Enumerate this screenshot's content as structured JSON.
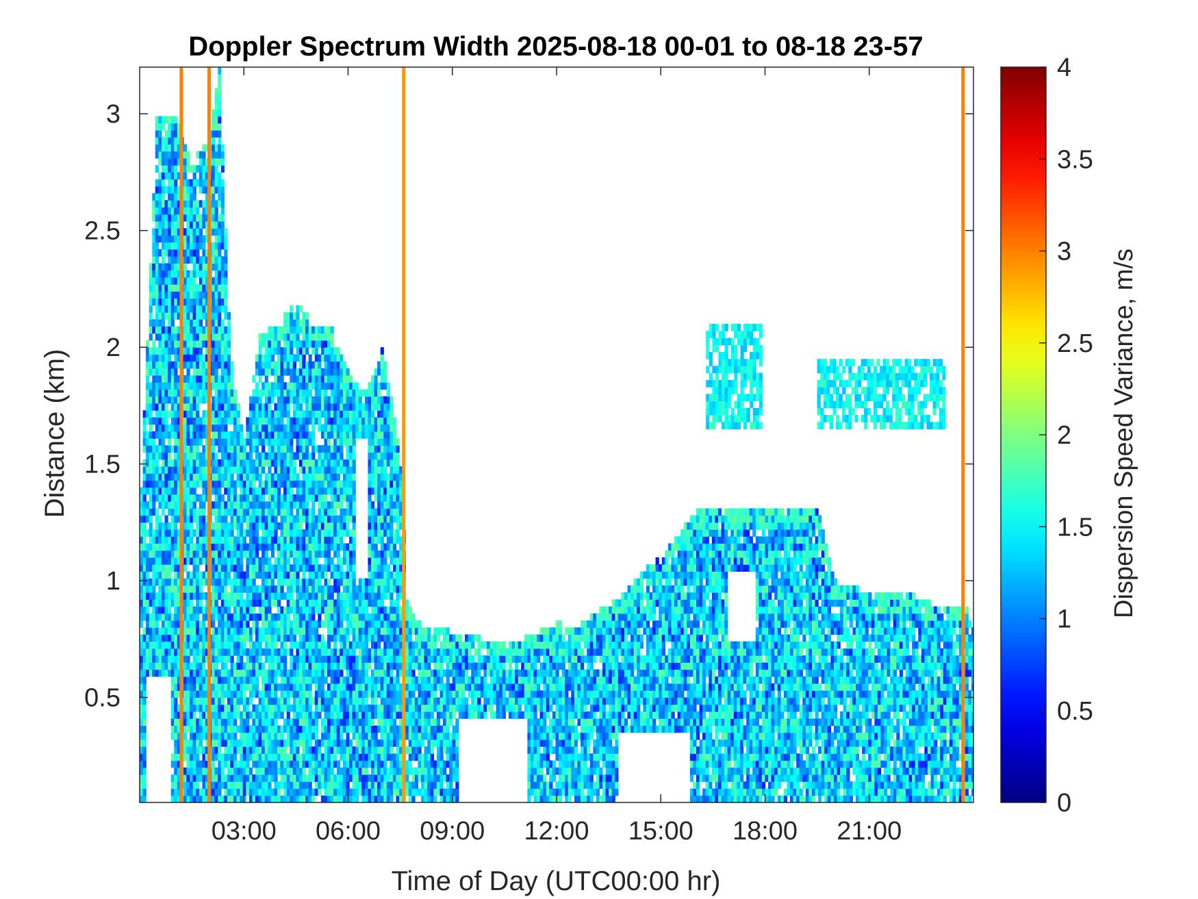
{
  "chart_data": {
    "type": "heatmap",
    "title": "Doppler Spectrum Width 2025-08-18 00-01 to 08-18 23-57",
    "xlabel": "Time of Day (UTC00:00 hr)",
    "ylabel": "Distance (km)",
    "colorbar_label": "Dispersion Speed Variance, m/s",
    "x_unit": "hour",
    "xlim": [
      0,
      24
    ],
    "ylim": [
      0.05,
      3.2
    ],
    "clim": [
      0,
      4
    ],
    "colormap": "jet",
    "x_ticks": [
      {
        "value": 3,
        "label": "03:00"
      },
      {
        "value": 6,
        "label": "06:00"
      },
      {
        "value": 9,
        "label": "09:00"
      },
      {
        "value": 12,
        "label": "12:00"
      },
      {
        "value": 15,
        "label": "15:00"
      },
      {
        "value": 18,
        "label": "18:00"
      },
      {
        "value": 21,
        "label": "21:00"
      }
    ],
    "y_ticks": [
      {
        "value": 0.5,
        "label": "0.5"
      },
      {
        "value": 1,
        "label": "1"
      },
      {
        "value": 1.5,
        "label": "1.5"
      },
      {
        "value": 2,
        "label": "2"
      },
      {
        "value": 2.5,
        "label": "2.5"
      },
      {
        "value": 3,
        "label": "3"
      }
    ],
    "colorbar_ticks": [
      {
        "value": 0,
        "label": "0"
      },
      {
        "value": 0.5,
        "label": "0.5"
      },
      {
        "value": 1,
        "label": "1"
      },
      {
        "value": 1.5,
        "label": "1.5"
      },
      {
        "value": 2,
        "label": "2"
      },
      {
        "value": 2.5,
        "label": "2.5"
      },
      {
        "value": 3,
        "label": "3"
      },
      {
        "value": 3.5,
        "label": "3.5"
      },
      {
        "value": 4,
        "label": "4"
      }
    ],
    "echo_top_profile": [
      [
        0.0,
        1.25
      ],
      [
        0.5,
        3.0
      ],
      [
        1.0,
        3.0
      ],
      [
        1.5,
        2.8
      ],
      [
        2.0,
        2.9
      ],
      [
        2.3,
        3.2
      ],
      [
        2.6,
        2.0
      ],
      [
        3.0,
        1.6
      ],
      [
        3.5,
        2.1
      ],
      [
        4.0,
        2.1
      ],
      [
        4.5,
        2.2
      ],
      [
        5.0,
        2.1
      ],
      [
        5.5,
        2.1
      ],
      [
        6.0,
        1.9
      ],
      [
        6.5,
        1.8
      ],
      [
        7.0,
        2.0
      ],
      [
        7.5,
        1.55
      ],
      [
        7.7,
        0.9
      ],
      [
        8.0,
        0.82
      ],
      [
        9.0,
        0.78
      ],
      [
        10.0,
        0.75
      ],
      [
        11.0,
        0.75
      ],
      [
        12.0,
        0.82
      ],
      [
        12.5,
        0.8
      ],
      [
        13.0,
        0.85
      ],
      [
        14.0,
        0.95
      ],
      [
        14.5,
        1.05
      ],
      [
        15.0,
        1.1
      ],
      [
        16.0,
        1.3
      ],
      [
        17.0,
        1.3
      ],
      [
        18.0,
        1.3
      ],
      [
        19.0,
        1.32
      ],
      [
        19.5,
        1.32
      ],
      [
        20.0,
        1.0
      ],
      [
        21.0,
        0.95
      ],
      [
        22.0,
        0.95
      ],
      [
        23.0,
        0.9
      ],
      [
        24.0,
        0.9
      ]
    ],
    "clear_regions": [
      {
        "x": [
          0.2,
          0.9
        ],
        "y": [
          0.05,
          0.6
        ],
        "desc_value": "no data"
      },
      {
        "x": [
          9.2,
          11.2
        ],
        "y": [
          0.05,
          0.4
        ],
        "desc_value": "no data"
      },
      {
        "x": [
          13.8,
          15.8
        ],
        "y": [
          0.05,
          0.35
        ],
        "desc_value": "no data"
      },
      {
        "x": [
          16.9,
          17.7
        ],
        "y": [
          0.75,
          1.05
        ],
        "desc_value": "no data"
      },
      {
        "x": [
          6.2,
          6.6
        ],
        "y": [
          1.0,
          1.6
        ],
        "desc_value": "no data"
      }
    ],
    "cloud_layers": [
      {
        "x": [
          16.3,
          17.9
        ],
        "y": [
          1.65,
          2.08
        ],
        "value": 1.5
      },
      {
        "x": [
          19.5,
          23.1
        ],
        "y": [
          1.65,
          1.95
        ],
        "value": 1.5
      }
    ],
    "high_value_lines": [
      {
        "x": 1.2,
        "value": 3.0
      },
      {
        "x": 2.0,
        "value": 3.0
      },
      {
        "x": 7.6,
        "value": 2.9
      },
      {
        "x": 23.7,
        "value": 3.0
      }
    ],
    "typical_value_range": [
      0.8,
      1.8
    ],
    "dominant_value": 1.4
  }
}
